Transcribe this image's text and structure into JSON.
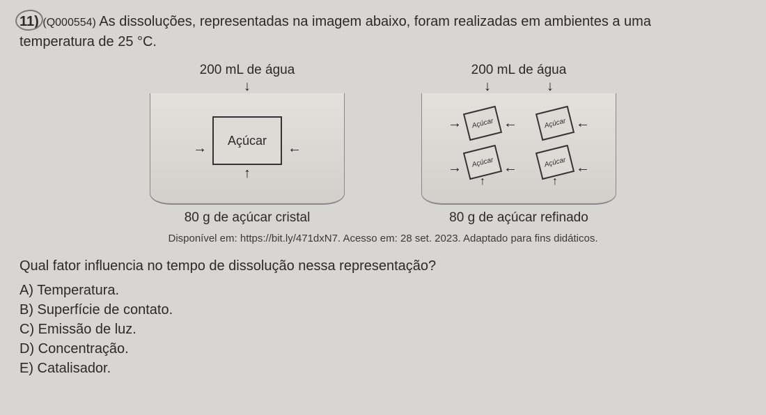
{
  "question": {
    "number": "11)",
    "code": "(Q000554)",
    "text_part1": "As dissoluções, representadas na imagem abaixo, foram realizadas em ambientes a uma",
    "text_part2": "temperatura de 25 °C."
  },
  "diagrams": {
    "left": {
      "top_label": "200 mL de água",
      "cube_label": "Açúcar",
      "bottom_label": "80 g de açúcar cristal"
    },
    "right": {
      "top_label": "200 mL de água",
      "cube_label": "Açúcar",
      "bottom_label": "80 g de açúcar refinado"
    }
  },
  "source": "Disponível em: https://bit.ly/471dxN7. Acesso em: 28 set. 2023. Adaptado para fins didáticos.",
  "prompt": "Qual fator influencia no tempo de dissolução nessa representação?",
  "options": {
    "a": "A) Temperatura.",
    "b": "B) Superfície de contato.",
    "c": "C) Emissão de luz.",
    "d": "D) Concentração.",
    "e": "E) Catalisador."
  },
  "glyphs": {
    "arrow_down": "↓",
    "arrow_up": "↑",
    "arrow_left": "←",
    "arrow_right": "→"
  },
  "colors": {
    "page_bg": "#d8d6d2",
    "text": "#2a2a2a",
    "cube_border": "#333333",
    "beaker_border": "#888888"
  }
}
